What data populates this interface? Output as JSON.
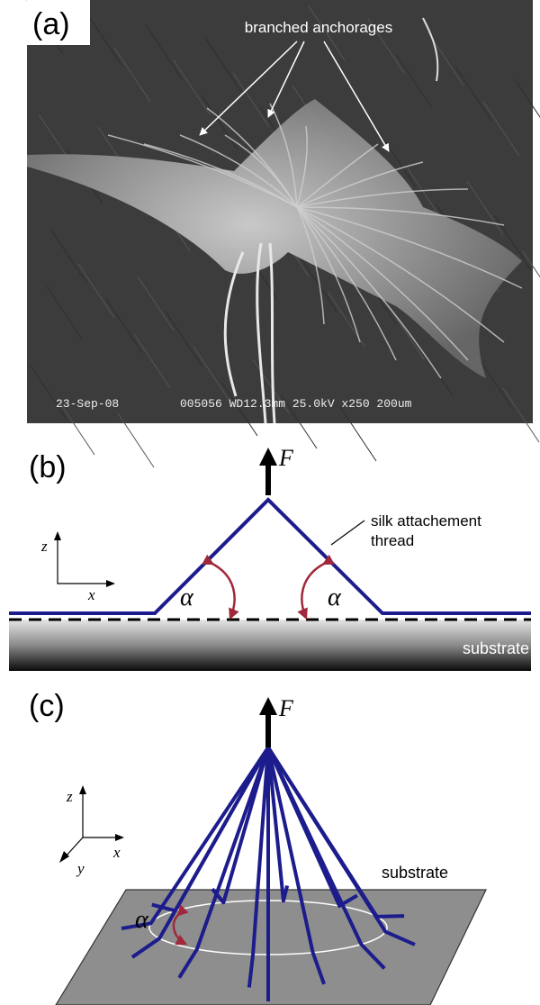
{
  "panel_a": {
    "label": "(a)",
    "annotation": "branched anchorages",
    "date_stamp": "23-Sep-08",
    "info_stamp": "005056 WD12.3mm 25.0kV x250 200um"
  },
  "panel_b": {
    "label": "(b)",
    "force": "F",
    "thread_label": [
      "silk attachement",
      "thread"
    ],
    "axis_z": "z",
    "axis_x": "x",
    "angle_left": "α",
    "angle_right": "α",
    "substrate": "substrate"
  },
  "panel_c": {
    "label": "(c)",
    "force": "F",
    "axis_z": "z",
    "axis_x": "x",
    "axis_y": "y",
    "substrate": "substrate",
    "angle": "α"
  }
}
